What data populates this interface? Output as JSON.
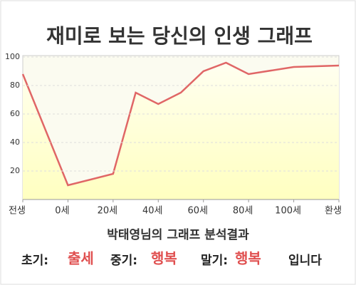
{
  "chart_data": {
    "type": "area",
    "title": "재미로 보는 당신의 인생 그래프",
    "x": [
      -20,
      0,
      20,
      30,
      40,
      50,
      60,
      70,
      80,
      100,
      120
    ],
    "values": [
      88,
      10,
      18,
      75,
      67,
      75,
      90,
      96,
      88,
      93,
      94
    ],
    "color": "#e06666",
    "fill": "#ffffc8",
    "xlim": [
      -20,
      120
    ],
    "xticks": [
      {
        "value": -20,
        "label": "전생"
      },
      {
        "value": 0,
        "label": "0세"
      },
      {
        "value": 20,
        "label": "20세"
      },
      {
        "value": 40,
        "label": "40세"
      },
      {
        "value": 60,
        "label": "60세"
      },
      {
        "value": 80,
        "label": "80세"
      },
      {
        "value": 100,
        "label": "100세"
      },
      {
        "value": 120,
        "label": "환생"
      }
    ],
    "ylim": [
      0,
      100
    ],
    "yticks": [
      20,
      40,
      60,
      80,
      100
    ],
    "grid": true
  },
  "summary": {
    "heading": "박태영님의 그래프 분석결과",
    "items": [
      {
        "label": "초기:",
        "result": "출세"
      },
      {
        "label": "중기:",
        "result": "행복"
      },
      {
        "label": "말기:",
        "result": "행복"
      }
    ],
    "ending": "입니다"
  }
}
